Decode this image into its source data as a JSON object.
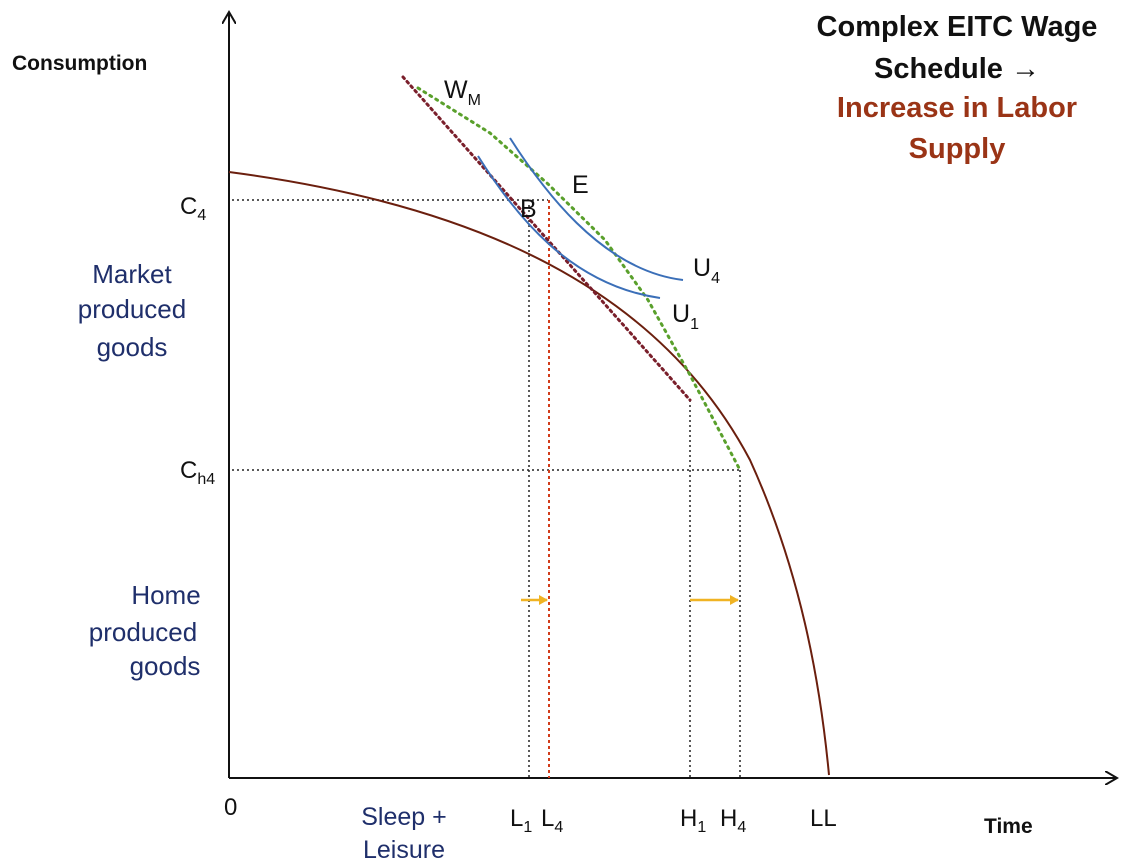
{
  "title": {
    "line1": "Complex EITC Wage",
    "line2": "Schedule →",
    "line3": "Increase in Labor",
    "line4": "Supply"
  },
  "axes": {
    "y_label": "Consumption",
    "x_label": "Time",
    "origin": "0"
  },
  "y_ticks": {
    "c4_base": "C",
    "c4_sub": "4",
    "ch4_base": "C",
    "ch4_sub": "h4"
  },
  "regions": {
    "market": [
      "Market",
      "produced",
      "goods"
    ],
    "home": [
      "Home",
      "produced",
      "goods"
    ]
  },
  "x_ticks": {
    "sleep": [
      "Sleep +",
      "Leisure"
    ],
    "l1_base": "L",
    "l1_sub": "1",
    "l4_base": "L",
    "l4_sub": "4",
    "h1_base": "H",
    "h1_sub": "1",
    "h4_base": "H",
    "h4_sub": "4",
    "ll": "LL"
  },
  "curve_labels": {
    "wm_base": "W",
    "wm_sub": "M",
    "e": "E",
    "b": "B",
    "u4_base": "U",
    "u4_sub": "4",
    "u1_base": "U",
    "u1_sub": "1"
  },
  "colors": {
    "ppf": "#6b1f0e",
    "indifference": "#3b6fb8",
    "wage_green": "#5aa02c",
    "wage_maroon": "#7a1f2b",
    "guide_red": "#d23c1a",
    "arrow": "#f0b323",
    "navy_text": "#1f2f6b",
    "title_red": "#9a3416"
  }
}
